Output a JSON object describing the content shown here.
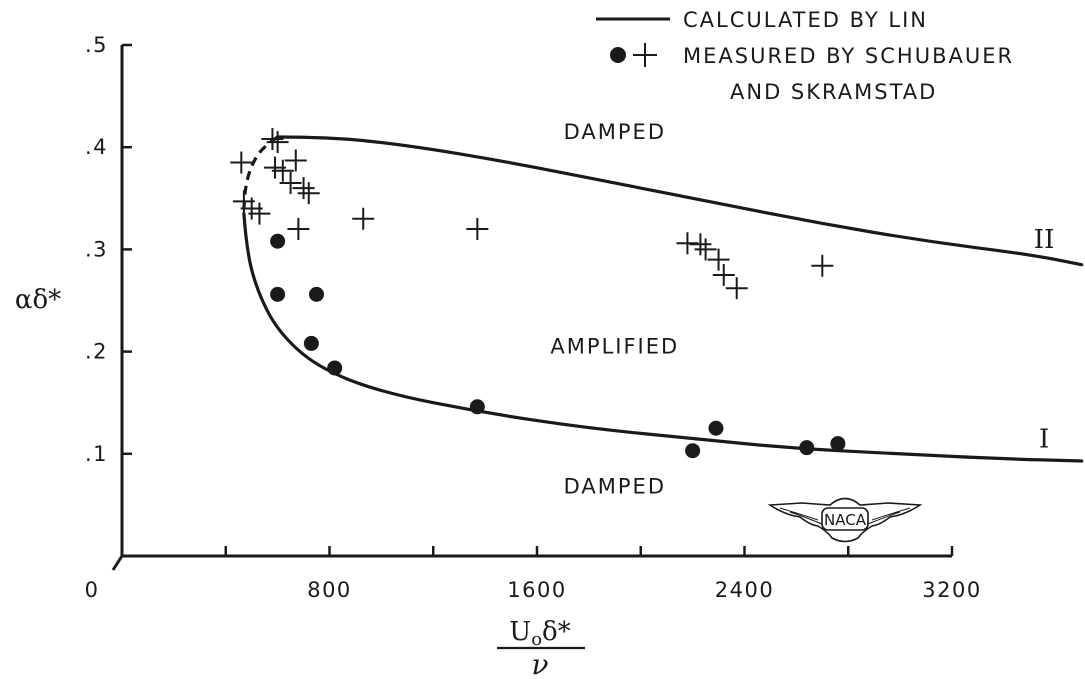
{
  "chart_data": {
    "type": "scatter",
    "xlabel": {
      "numerator_base": "U",
      "numerator_sub": "o",
      "numerator_rest": "δ*",
      "denominator": "ν"
    },
    "ylabel": "αδ*",
    "xlim": [
      0,
      3200
    ],
    "ylim": [
      0,
      0.5
    ],
    "x_ticks": [
      {
        "value": 0,
        "label": "0"
      },
      {
        "value": 400,
        "label": ""
      },
      {
        "value": 800,
        "label": "800"
      },
      {
        "value": 1200,
        "label": ""
      },
      {
        "value": 1600,
        "label": "1600"
      },
      {
        "value": 2000,
        "label": ""
      },
      {
        "value": 2400,
        "label": "2400"
      },
      {
        "value": 2800,
        "label": ""
      },
      {
        "value": 3200,
        "label": "3200"
      }
    ],
    "y_ticks": [
      {
        "value": 0.1,
        "label": ".1"
      },
      {
        "value": 0.2,
        "label": ".2"
      },
      {
        "value": 0.3,
        "label": ".3"
      },
      {
        "value": 0.4,
        "label": ".4"
      },
      {
        "value": 0.5,
        "label": ".5"
      }
    ],
    "legend": {
      "placement": "top-right",
      "line_label": "CALCULATED BY LIN",
      "marker_label_line1": "MEASURED BY SCHUBAUER",
      "marker_label_line2": "AND SKRAMSTAD"
    },
    "regions": [
      {
        "label": "DAMPED",
        "x": 1900,
        "y": 0.415
      },
      {
        "label": "AMPLIFIED",
        "x": 1900,
        "y": 0.205
      },
      {
        "label": "DAMPED",
        "x": 1900,
        "y": 0.068
      }
    ],
    "branch_labels": [
      {
        "label": "II",
        "x": 3555,
        "y": 0.31
      },
      {
        "label": "I",
        "x": 3555,
        "y": 0.115
      }
    ],
    "series": [
      {
        "style": "curve",
        "upper_branch": [
          [
            600,
            0.41
          ],
          [
            800,
            0.41
          ],
          [
            1100,
            0.402
          ],
          [
            1500,
            0.385
          ],
          [
            1900,
            0.365
          ],
          [
            2300,
            0.345
          ],
          [
            2700,
            0.325
          ],
          [
            3100,
            0.308
          ],
          [
            3500,
            0.295
          ],
          [
            3700,
            0.285
          ]
        ],
        "dashed_nose": [
          [
            600,
            0.41
          ],
          [
            540,
            0.4
          ],
          [
            495,
            0.38
          ],
          [
            475,
            0.36
          ],
          [
            470,
            0.34
          ]
        ],
        "lower_branch": [
          [
            470,
            0.335
          ],
          [
            480,
            0.3
          ],
          [
            520,
            0.26
          ],
          [
            600,
            0.22
          ],
          [
            750,
            0.185
          ],
          [
            1000,
            0.16
          ],
          [
            1400,
            0.14
          ],
          [
            1800,
            0.125
          ],
          [
            2200,
            0.115
          ],
          [
            2600,
            0.105
          ],
          [
            3000,
            0.1
          ],
          [
            3400,
            0.095
          ],
          [
            3700,
            0.093
          ]
        ]
      },
      {
        "style": "cross",
        "points": [
          [
            460,
            0.385
          ],
          [
            580,
            0.408
          ],
          [
            600,
            0.405
          ],
          [
            590,
            0.38
          ],
          [
            620,
            0.377
          ],
          [
            670,
            0.387
          ],
          [
            650,
            0.365
          ],
          [
            700,
            0.36
          ],
          [
            720,
            0.355
          ],
          [
            470,
            0.347
          ],
          [
            500,
            0.34
          ],
          [
            530,
            0.335
          ],
          [
            680,
            0.32
          ],
          [
            930,
            0.33
          ],
          [
            1370,
            0.32
          ],
          [
            2180,
            0.306
          ],
          [
            2230,
            0.305
          ],
          [
            2250,
            0.3
          ],
          [
            2300,
            0.29
          ],
          [
            2320,
            0.275
          ],
          [
            2370,
            0.262
          ],
          [
            2700,
            0.284
          ]
        ]
      },
      {
        "style": "dot",
        "points": [
          [
            600,
            0.308
          ],
          [
            600,
            0.256
          ],
          [
            750,
            0.256
          ],
          [
            730,
            0.208
          ],
          [
            820,
            0.184
          ],
          [
            1370,
            0.146
          ],
          [
            2200,
            0.103
          ],
          [
            2290,
            0.125
          ],
          [
            2640,
            0.106
          ],
          [
            2760,
            0.11
          ]
        ]
      }
    ]
  },
  "watermark": "NACA"
}
